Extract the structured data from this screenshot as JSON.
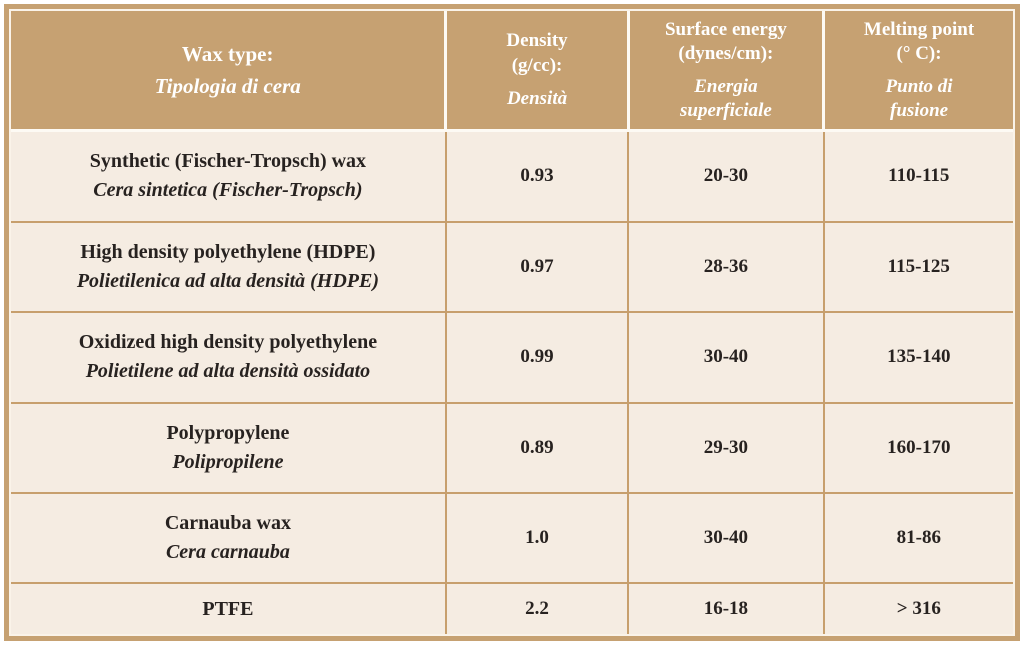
{
  "colors": {
    "header_bg": "#C6A172",
    "body_bg": "#F5ECE2",
    "grid_tan": "#C79F6D",
    "divider_light": "#FDFAF4",
    "header_text": "#FFFFFF",
    "body_text": "#272220",
    "page_bg": "#FFFFFF"
  },
  "chart_data": {
    "type": "table",
    "columns": [
      {
        "en_lines": [
          "Wax type:"
        ],
        "it_lines": [
          "Tipologia di cera"
        ]
      },
      {
        "en_lines": [
          "Density",
          "(g/cc):"
        ],
        "it_lines": [
          "Densità"
        ]
      },
      {
        "en_lines": [
          "Surface energy",
          "(dynes/cm):"
        ],
        "it_lines": [
          "Energia",
          "superficiale"
        ]
      },
      {
        "en_lines": [
          "Melting point",
          "(° C):"
        ],
        "it_lines": [
          "Punto di",
          "fusione"
        ]
      }
    ],
    "rows": [
      {
        "wax_en": "Synthetic (Fischer-Tropsch) wax",
        "wax_it": "Cera sintetica (Fischer-Tropsch)",
        "density": "0.93",
        "surface_energy": "20-30",
        "melting_point": "110-115"
      },
      {
        "wax_en": "High density polyethylene (HDPE)",
        "wax_it": "Polietilenica ad alta densità (HDPE)",
        "density": "0.97",
        "surface_energy": "28-36",
        "melting_point": "115-125"
      },
      {
        "wax_en": "Oxidized high density polyethylene",
        "wax_it": "Polietilene ad alta densità ossidato",
        "density": "0.99",
        "surface_energy": "30-40",
        "melting_point": "135-140"
      },
      {
        "wax_en": "Polypropylene",
        "wax_it": "Polipropilene",
        "density": "0.89",
        "surface_energy": "29-30",
        "melting_point": "160-170"
      },
      {
        "wax_en": "Carnauba wax",
        "wax_it": "Cera carnauba",
        "density": "1.0",
        "surface_energy": "30-40",
        "melting_point": "81-86"
      },
      {
        "wax_en": "PTFE",
        "wax_it": "",
        "density": "2.2",
        "surface_energy": "16-18",
        "melting_point": "> 316"
      }
    ]
  }
}
